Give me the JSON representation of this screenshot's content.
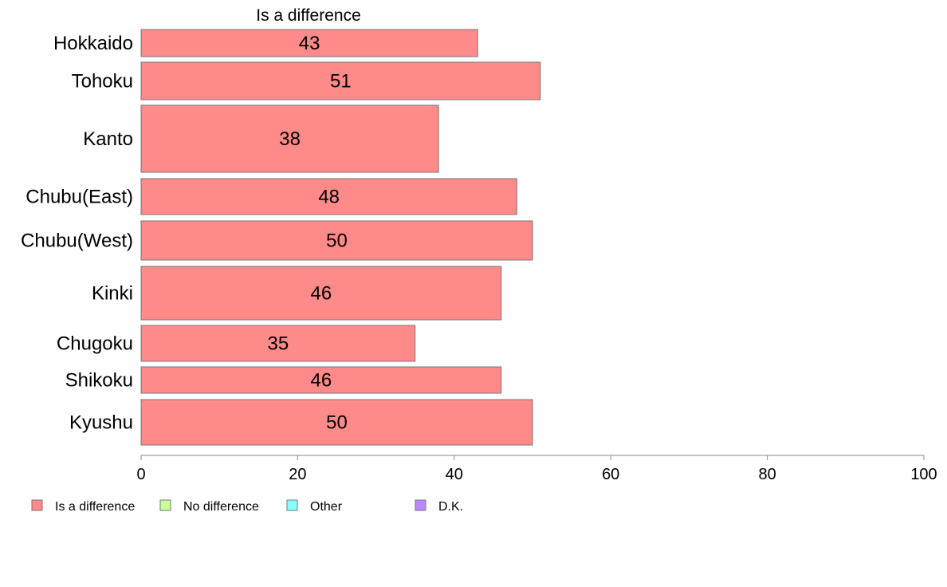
{
  "chart_data": {
    "type": "bar",
    "orientation": "horizontal",
    "series_title": "Is a difference",
    "categories": [
      "Hokkaido",
      "Tohoku",
      "Kanto",
      "Chubu(East)",
      "Chubu(West)",
      "Kinki",
      "Chugoku",
      "Shikoku",
      "Kyushu"
    ],
    "series": [
      {
        "name": "Is a difference",
        "values": [
          43,
          51,
          38,
          48,
          50,
          46,
          35,
          46,
          50
        ],
        "color": "#ff8a8a"
      }
    ],
    "xlim": [
      0,
      100
    ],
    "xticks": [
      "0",
      "20",
      "40",
      "60",
      "80",
      "100"
    ],
    "legend": [
      {
        "label": "Is a difference",
        "color": "#ff8a8a"
      },
      {
        "label": "No difference",
        "color": "#ccff99"
      },
      {
        "label": "Other",
        "color": "#88ffff"
      },
      {
        "label": "D.K.",
        "color": "#bb88ff"
      }
    ],
    "grid": false,
    "legend_position": "bottom-left"
  }
}
